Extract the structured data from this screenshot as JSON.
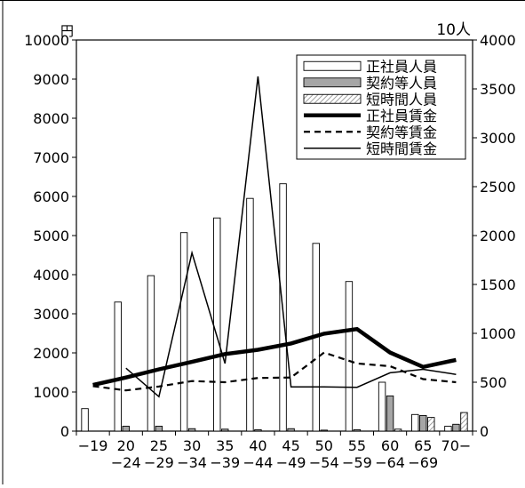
{
  "chart_data": {
    "type": "bar",
    "left_unit": "円",
    "right_unit": "10人",
    "categories": [
      [
        "−19"
      ],
      [
        "20",
        "−24"
      ],
      [
        "25",
        "−29"
      ],
      [
        "30",
        "−34"
      ],
      [
        "35",
        "−39"
      ],
      [
        "40",
        "−44"
      ],
      [
        "45",
        "−49"
      ],
      [
        "50",
        "−54"
      ],
      [
        "55",
        "−59"
      ],
      [
        "60",
        "−64"
      ],
      [
        "65",
        "−69"
      ],
      [
        "70−"
      ]
    ],
    "left_axis": {
      "min": 0,
      "max": 10000,
      "ticks": [
        "0",
        "1000",
        "2000",
        "3000",
        "4000",
        "5000",
        "6000",
        "7000",
        "8000",
        "9000",
        "10000"
      ]
    },
    "right_axis": {
      "min": 0,
      "max": 4000,
      "ticks": [
        "0",
        "500",
        "1000",
        "1500",
        "2000",
        "2500",
        "3000",
        "3500",
        "4000"
      ]
    },
    "bar_series": [
      {
        "name": "正社員人員",
        "style": "white",
        "values": [
          230,
          1320,
          1590,
          2030,
          2180,
          2380,
          2530,
          1920,
          1530,
          500,
          170,
          50
        ]
      },
      {
        "name": "契約等人員",
        "style": "gray",
        "values": [
          0,
          50,
          50,
          25,
          20,
          15,
          25,
          10,
          15,
          360,
          160,
          70
        ]
      },
      {
        "name": "短時間人員",
        "style": "hatched",
        "values": [
          0,
          0,
          0,
          0,
          0,
          0,
          0,
          0,
          0,
          20,
          140,
          190
        ]
      }
    ],
    "line_series": [
      {
        "name": "正社員賃金",
        "style": "thick",
        "values": [
          1180,
          1370,
          1580,
          1770,
          1970,
          2080,
          2240,
          2490,
          2610,
          2010,
          1640,
          1820
        ]
      },
      {
        "name": "契約等賃金",
        "style": "dashed",
        "values": [
          1150,
          1040,
          1140,
          1280,
          1250,
          1360,
          1370,
          2010,
          1730,
          1660,
          1330,
          1250
        ]
      },
      {
        "name": "短時間賃金",
        "style": "thin",
        "values": [
          null,
          1610,
          880,
          4560,
          1730,
          9070,
          1130,
          1130,
          1120,
          1490,
          1580,
          1450
        ]
      }
    ],
    "legend_placement": "top-right",
    "grid": false
  }
}
